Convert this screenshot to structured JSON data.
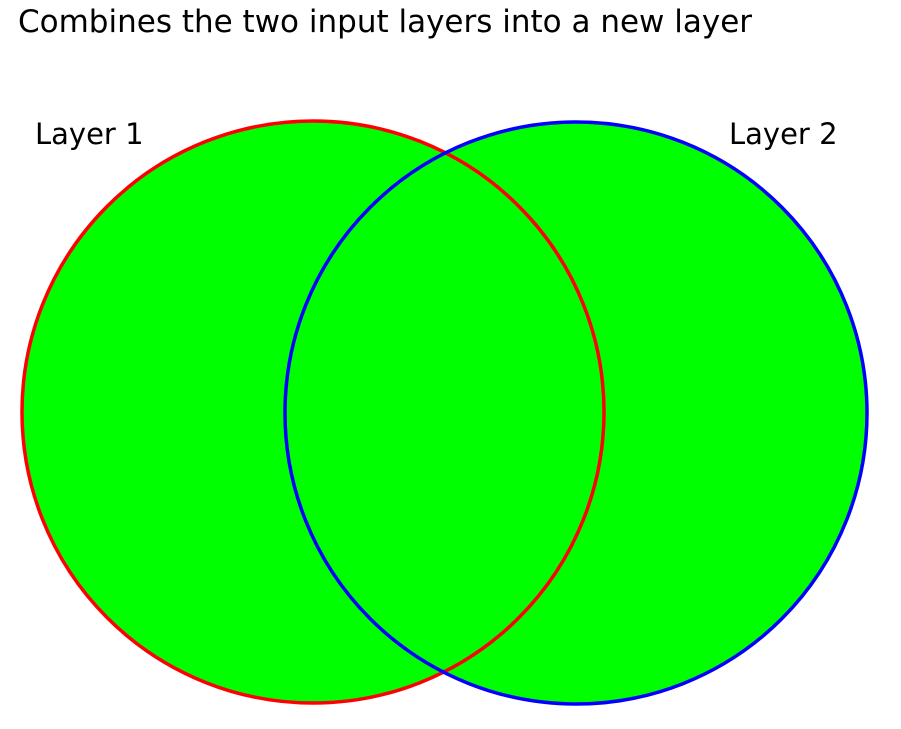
{
  "title": "Combines the two input layers into a new layer",
  "layers": [
    {
      "label": "Layer 1",
      "outline_color": "#ff0000"
    },
    {
      "label": "Layer 2",
      "outline_color": "#0000ff"
    }
  ],
  "fill_color": "#00ff00"
}
